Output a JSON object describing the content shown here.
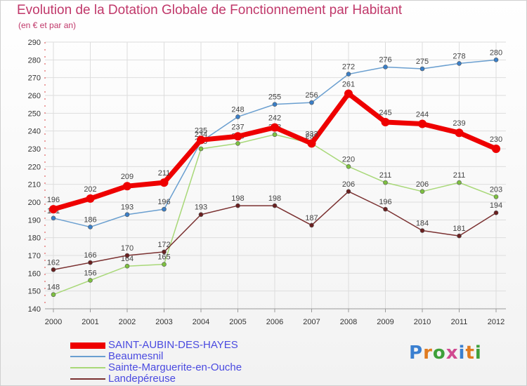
{
  "header": {
    "title": "Evolution de la Dotation Globale de Fonctionnement par Habitant",
    "subtitle": "(en € et par an)"
  },
  "logo": {
    "text": "Proxiti",
    "colors": [
      "#3a7fd0",
      "#e07b20",
      "#3ea03a",
      "#d04a90",
      "#3a7fd0",
      "#e07b20",
      "#3ea03a"
    ]
  },
  "chart_data": {
    "type": "line",
    "title": "Evolution de la Dotation Globale de Fonctionnement par Habitant",
    "subtitle": "(en € et par an)",
    "x": [
      "2000",
      "2001",
      "2002",
      "2003",
      "2004",
      "2005",
      "2006",
      "2007",
      "2008",
      "2009",
      "2010",
      "2011",
      "2012"
    ],
    "ylim": [
      140,
      290
    ],
    "yticks": [
      140,
      150,
      160,
      170,
      180,
      190,
      200,
      210,
      220,
      230,
      240,
      250,
      260,
      270,
      280,
      290
    ],
    "grid": true,
    "legend_position": "bottom-left",
    "series": [
      {
        "name": "SAINT-AUBIN-DES-HAYES",
        "color": "#ee0000",
        "highlight": true,
        "values": [
          196,
          202,
          209,
          211,
          235,
          237,
          242,
          233,
          261,
          245,
          244,
          239,
          230
        ]
      },
      {
        "name": "Beaumesnil",
        "color": "#6a9fd0",
        "marker": "#3a7fc8",
        "values": [
          191,
          186,
          193,
          196,
          234,
          248,
          255,
          256,
          272,
          276,
          275,
          278,
          280
        ]
      },
      {
        "name": "Sainte-Marguerite-en-Ouche",
        "color": "#a8d878",
        "marker": "#7dc040",
        "values": [
          148,
          156,
          164,
          165,
          230,
          233,
          238,
          233,
          220,
          211,
          206,
          211,
          203
        ]
      },
      {
        "name": "Landepéreuse",
        "color": "#7a3030",
        "marker": "#6a2020",
        "values": [
          162,
          166,
          170,
          172,
          193,
          198,
          198,
          187,
          206,
          196,
          184,
          181,
          194
        ]
      }
    ]
  }
}
